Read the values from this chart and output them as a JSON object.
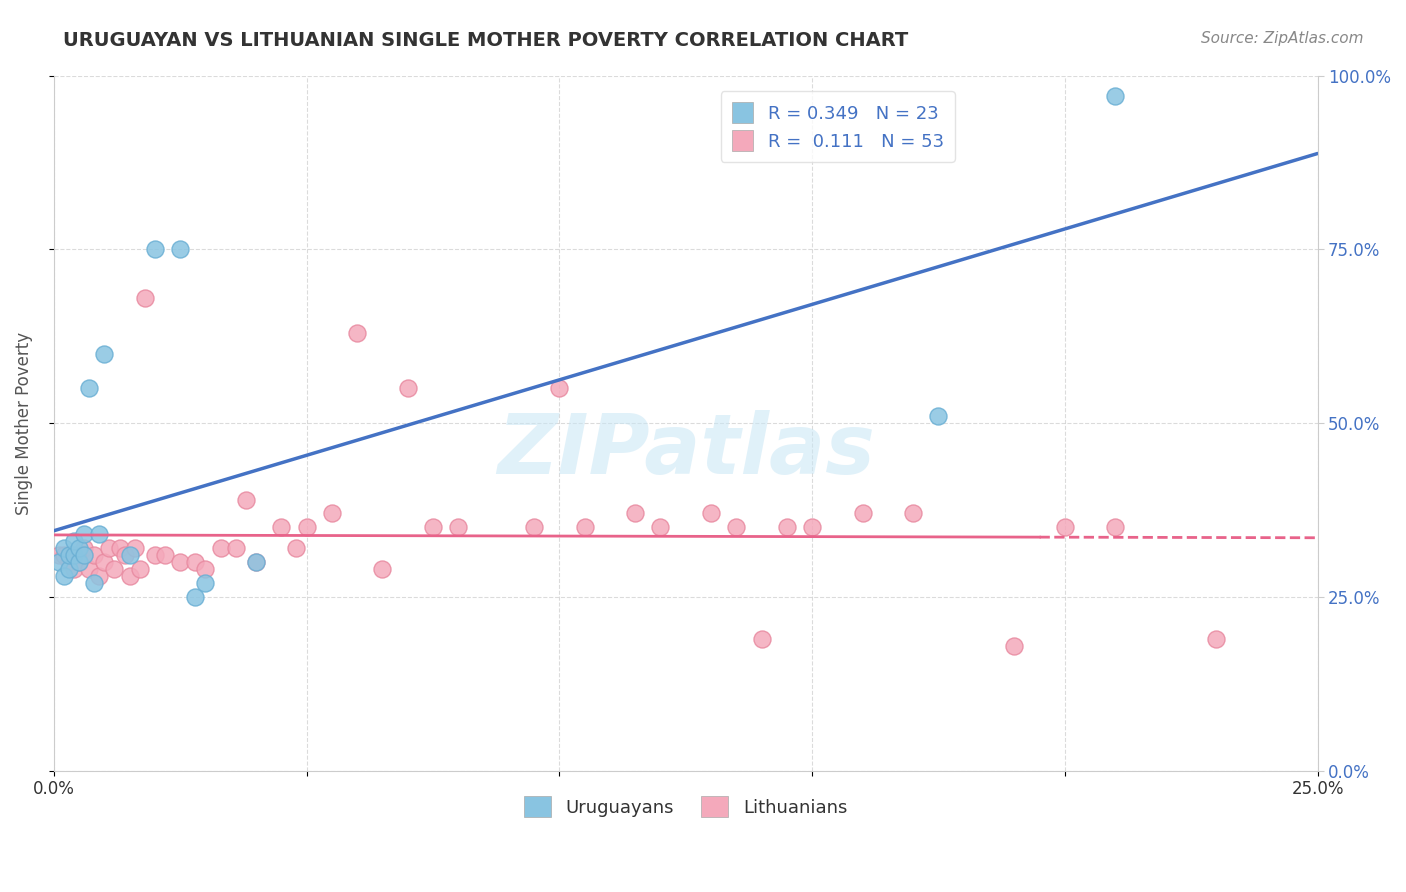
{
  "title": "URUGUAYAN VS LITHUANIAN SINGLE MOTHER POVERTY CORRELATION CHART",
  "source": "Source: ZipAtlas.com",
  "ylabel": "Single Mother Poverty",
  "xlim": [
    0.0,
    0.25
  ],
  "ylim": [
    0.0,
    1.0
  ],
  "xticks": [
    0.0,
    0.05,
    0.1,
    0.15,
    0.2,
    0.25
  ],
  "yticks": [
    0.0,
    0.25,
    0.5,
    0.75,
    1.0
  ],
  "xtick_labels": [
    "0.0%",
    "",
    "",
    "",
    "",
    "25.0%"
  ],
  "ytick_labels_right": [
    "0.0%",
    "25.0%",
    "50.0%",
    "75.0%",
    "100.0%"
  ],
  "uruguayan_color": "#89C4E1",
  "uruguayan_edge_color": "#6AAFD4",
  "lithuanian_color": "#F4A9BB",
  "lithuanian_edge_color": "#E88AA0",
  "uruguayan_line_color": "#4472C4",
  "lithuanian_line_color": "#E8638A",
  "R_uruguayan": 0.349,
  "N_uruguayan": 23,
  "R_lithuanian": 0.111,
  "N_lithuanian": 53,
  "watermark": "ZIPatlas",
  "legend_label_uruguayan": "Uruguayans",
  "legend_label_lithuanian": "Lithuanians",
  "uruguayan_x": [
    0.001,
    0.002,
    0.002,
    0.003,
    0.003,
    0.004,
    0.004,
    0.005,
    0.005,
    0.006,
    0.006,
    0.007,
    0.008,
    0.009,
    0.01,
    0.015,
    0.02,
    0.025,
    0.028,
    0.03,
    0.04,
    0.175,
    0.21
  ],
  "uruguayan_y": [
    0.3,
    0.28,
    0.32,
    0.29,
    0.31,
    0.31,
    0.33,
    0.3,
    0.32,
    0.31,
    0.34,
    0.55,
    0.27,
    0.34,
    0.6,
    0.31,
    0.75,
    0.75,
    0.25,
    0.27,
    0.3,
    0.51,
    0.97
  ],
  "lithuanian_x": [
    0.001,
    0.002,
    0.003,
    0.004,
    0.005,
    0.006,
    0.006,
    0.007,
    0.008,
    0.009,
    0.01,
    0.011,
    0.012,
    0.013,
    0.014,
    0.015,
    0.016,
    0.017,
    0.018,
    0.02,
    0.022,
    0.025,
    0.028,
    0.03,
    0.033,
    0.036,
    0.038,
    0.04,
    0.045,
    0.048,
    0.05,
    0.055,
    0.06,
    0.065,
    0.07,
    0.075,
    0.08,
    0.095,
    0.1,
    0.105,
    0.115,
    0.12,
    0.13,
    0.135,
    0.14,
    0.145,
    0.15,
    0.16,
    0.17,
    0.19,
    0.2,
    0.21,
    0.23
  ],
  "lithuanian_y": [
    0.31,
    0.31,
    0.3,
    0.29,
    0.3,
    0.31,
    0.32,
    0.29,
    0.31,
    0.28,
    0.3,
    0.32,
    0.29,
    0.32,
    0.31,
    0.28,
    0.32,
    0.29,
    0.68,
    0.31,
    0.31,
    0.3,
    0.3,
    0.29,
    0.32,
    0.32,
    0.39,
    0.3,
    0.35,
    0.32,
    0.35,
    0.37,
    0.63,
    0.29,
    0.55,
    0.35,
    0.35,
    0.35,
    0.55,
    0.35,
    0.37,
    0.35,
    0.37,
    0.35,
    0.19,
    0.35,
    0.35,
    0.37,
    0.37,
    0.18,
    0.35,
    0.35,
    0.19
  ]
}
